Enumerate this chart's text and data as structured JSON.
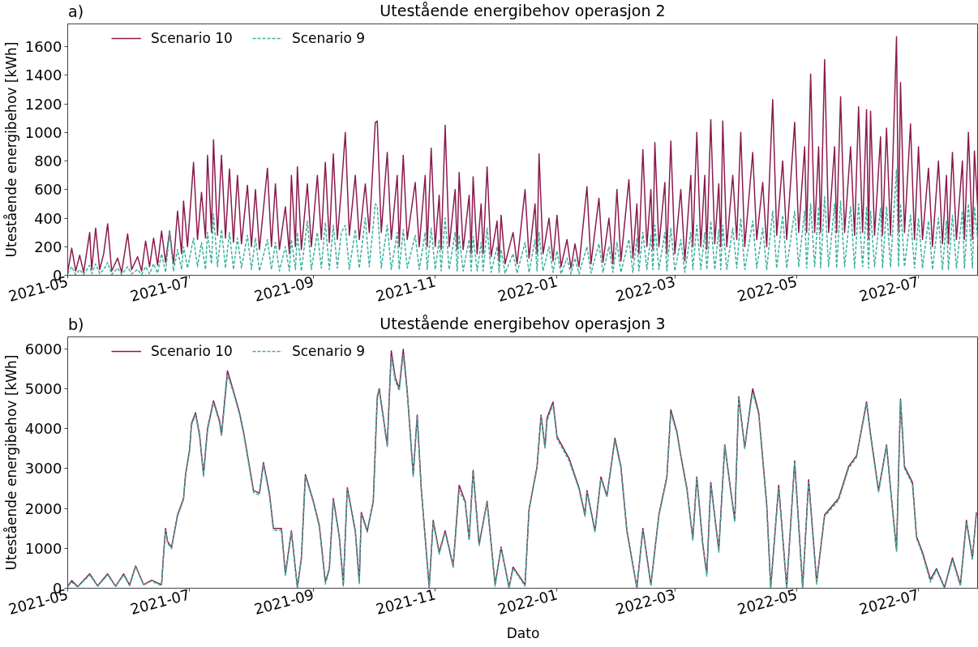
{
  "chart_data": [
    {
      "type": "line",
      "title": "Utestående energibehov operasjon 2",
      "ylabel": "Utestående energibehov [kWh]",
      "annotations": [
        "a)"
      ],
      "legend": "top left",
      "xlim": [
        "2021-05-01",
        "2022-07-31"
      ],
      "ylim": [
        0,
        1760
      ],
      "xticks": [
        "2021-05",
        "2021-07",
        "2021-09",
        "2021-11",
        "2022-01",
        "2022-03",
        "2022-05",
        "2022-07"
      ],
      "yticks": [
        0,
        200,
        400,
        600,
        800,
        1000,
        1200,
        1400,
        1600
      ],
      "x": [
        "2021-05-01",
        "2021-05-03",
        "2021-05-05",
        "2021-05-07",
        "2021-05-09",
        "2021-05-12",
        "2021-05-13",
        "2021-05-15",
        "2021-05-17",
        "2021-05-19",
        "2021-05-21",
        "2021-05-23",
        "2021-05-26",
        "2021-05-28",
        "2021-05-31",
        "2021-06-02",
        "2021-06-05",
        "2021-06-07",
        "2021-06-09",
        "2021-06-11",
        "2021-06-13",
        "2021-06-15",
        "2021-06-17",
        "2021-06-19",
        "2021-06-21",
        "2021-06-23",
        "2021-06-25",
        "2021-06-27",
        "2021-06-28",
        "2021-06-30",
        "2021-07-03",
        "2021-07-05",
        "2021-07-07",
        "2021-07-09",
        "2021-07-10",
        "2021-07-12",
        "2021-07-13",
        "2021-07-15",
        "2021-07-17",
        "2021-07-19",
        "2021-07-21",
        "2021-07-23",
        "2021-07-25",
        "2021-07-27",
        "2021-07-30",
        "2021-08-01",
        "2021-08-03",
        "2021-08-05",
        "2021-08-09",
        "2021-08-11",
        "2021-08-13",
        "2021-08-15",
        "2021-08-18",
        "2021-08-20",
        "2021-08-21",
        "2021-08-23",
        "2021-08-24",
        "2021-08-26",
        "2021-08-29",
        "2021-08-31",
        "2021-09-03",
        "2021-09-05",
        "2021-09-07",
        "2021-09-09",
        "2021-09-11",
        "2021-09-13",
        "2021-09-15",
        "2021-09-17",
        "2021-09-19",
        "2021-09-22",
        "2021-09-24",
        "2021-09-27",
        "2021-09-29",
        "2021-10-02",
        "2021-10-03",
        "2021-10-05",
        "2021-10-08",
        "2021-10-10",
        "2021-10-13",
        "2021-10-14",
        "2021-10-16",
        "2021-10-18",
        "2021-10-22",
        "2021-10-24",
        "2021-10-27",
        "2021-10-28",
        "2021-10-30",
        "2021-11-01",
        "2021-11-03",
        "2021-11-04",
        "2021-11-06",
        "2021-11-08",
        "2021-11-11",
        "2021-11-12",
        "2021-11-13",
        "2021-11-15",
        "2021-11-18",
        "2021-11-19",
        "2021-11-20",
        "2021-11-22",
        "2021-11-24",
        "2021-11-25",
        "2021-11-27",
        "2021-11-29",
        "2021-12-02",
        "2021-12-03",
        "2021-12-04",
        "2021-12-06",
        "2021-12-10",
        "2021-12-12",
        "2021-12-16",
        "2021-12-18",
        "2021-12-21",
        "2021-12-22",
        "2021-12-23",
        "2021-12-25",
        "2021-12-28",
        "2021-12-30",
        "2022-01-01",
        "2022-01-03",
        "2022-01-06",
        "2022-01-08",
        "2022-01-10",
        "2022-01-12",
        "2022-01-16",
        "2022-01-18",
        "2022-01-22",
        "2022-01-24",
        "2022-01-27",
        "2022-01-29",
        "2022-01-31",
        "2022-02-02",
        "2022-02-06",
        "2022-02-08",
        "2022-02-10",
        "2022-02-11",
        "2022-02-13",
        "2022-02-15",
        "2022-02-17",
        "2022-02-18",
        "2022-02-19",
        "2022-02-21",
        "2022-02-24",
        "2022-02-25",
        "2022-02-27",
        "2022-03-01",
        "2022-03-04",
        "2022-03-06",
        "2022-03-09",
        "2022-03-10",
        "2022-03-12",
        "2022-03-14",
        "2022-03-16",
        "2022-03-17",
        "2022-03-19",
        "2022-03-21",
        "2022-03-23",
        "2022-03-24",
        "2022-03-25",
        "2022-03-27",
        "2022-03-30",
        "2022-04-01",
        "2022-04-03",
        "2022-04-05",
        "2022-04-09",
        "2022-04-11",
        "2022-04-14",
        "2022-04-16",
        "2022-04-19",
        "2022-04-21",
        "2022-04-24",
        "2022-04-26",
        "2022-04-30",
        "2022-05-02",
        "2022-05-05",
        "2022-05-06",
        "2022-05-08",
        "2022-05-10",
        "2022-05-12",
        "2022-05-13",
        "2022-05-15",
        "2022-05-17",
        "2022-05-20",
        "2022-05-21",
        "2022-05-23",
        "2022-05-25",
        "2022-05-28",
        "2022-05-30",
        "2022-06-01",
        "2022-06-03",
        "2022-06-05",
        "2022-06-06",
        "2022-06-07",
        "2022-06-09",
        "2022-06-12",
        "2022-06-13",
        "2022-06-15",
        "2022-06-17",
        "2022-06-20",
        "2022-06-21",
        "2022-06-22",
        "2022-06-24",
        "2022-06-27",
        "2022-06-29",
        "2022-07-01",
        "2022-07-03",
        "2022-07-06",
        "2022-07-08",
        "2022-07-11",
        "2022-07-13",
        "2022-07-15",
        "2022-07-16",
        "2022-07-18",
        "2022-07-20",
        "2022-07-23",
        "2022-07-24",
        "2022-07-26",
        "2022-07-28",
        "2022-07-29",
        "2022-07-31"
      ],
      "series": [
        {
          "name": "Scenario 10",
          "color": "#8b1a4f",
          "line_style": "solid",
          "values": [
            20,
            190,
            30,
            140,
            20,
            300,
            40,
            330,
            40,
            150,
            360,
            30,
            120,
            20,
            290,
            40,
            130,
            30,
            240,
            60,
            260,
            70,
            310,
            90,
            310,
            80,
            450,
            150,
            520,
            200,
            790,
            250,
            580,
            260,
            840,
            300,
            950,
            280,
            840,
            260,
            745,
            230,
            700,
            220,
            630,
            200,
            600,
            180,
            750,
            200,
            640,
            180,
            480,
            150,
            700,
            200,
            760,
            180,
            640,
            200,
            700,
            250,
            790,
            230,
            850,
            250,
            600,
            1000,
            280,
            700,
            250,
            640,
            300,
            1070,
            1080,
            300,
            860,
            250,
            700,
            200,
            840,
            250,
            650,
            200,
            700,
            200,
            890,
            200,
            560,
            180,
            1050,
            200,
            600,
            180,
            720,
            180,
            560,
            150,
            690,
            150,
            500,
            150,
            760,
            130,
            380,
            100,
            420,
            80,
            300,
            80,
            600,
            120,
            500,
            150,
            850,
            150,
            400,
            100,
            420,
            60,
            250,
            50,
            220,
            60,
            620,
            80,
            540,
            90,
            400,
            80,
            600,
            100,
            670,
            120,
            500,
            150,
            880,
            200,
            600,
            180,
            930,
            200,
            650,
            150,
            940,
            150,
            600,
            100,
            700,
            200,
            1000,
            200,
            700,
            180,
            1090,
            220,
            640,
            200,
            1080,
            200,
            700,
            250,
            1000,
            200,
            860,
            250,
            650,
            200,
            1230,
            280,
            800,
            250,
            1070,
            300,
            900,
            300,
            1410,
            300,
            900,
            300,
            1510,
            300,
            900,
            300,
            1250,
            300,
            900,
            280,
            1180,
            300,
            1160,
            250,
            1150,
            280,
            970,
            280,
            1030,
            280,
            1670,
            300,
            1350,
            300,
            1060,
            250,
            900,
            250,
            750,
            200,
            800,
            220,
            700,
            220,
            860,
            250,
            800,
            250,
            1000,
            250,
            870,
            400
          ]
        },
        {
          "name": "Scenario 9",
          "color": "#3db29c",
          "line_style": "dashed",
          "values": [
            10,
            60,
            5,
            40,
            5,
            70,
            10,
            80,
            10,
            40,
            90,
            5,
            50,
            5,
            60,
            10,
            40,
            5,
            60,
            10,
            80,
            15,
            150,
            20,
            300,
            30,
            180,
            40,
            200,
            50,
            260,
            60,
            230,
            40,
            300,
            80,
            430,
            60,
            320,
            50,
            300,
            40,
            260,
            50,
            280,
            40,
            260,
            30,
            250,
            40,
            230,
            30,
            200,
            30,
            250,
            40,
            300,
            30,
            380,
            40,
            300,
            50,
            370,
            40,
            350,
            50,
            300,
            350,
            40,
            320,
            50,
            400,
            60,
            500,
            480,
            50,
            350,
            40,
            300,
            40,
            320,
            50,
            280,
            40,
            300,
            40,
            330,
            40,
            250,
            30,
            400,
            40,
            300,
            30,
            280,
            30,
            250,
            30,
            270,
            30,
            230,
            30,
            330,
            20,
            200,
            20,
            180,
            15,
            150,
            15,
            230,
            20,
            250,
            30,
            300,
            30,
            200,
            20,
            170,
            10,
            120,
            10,
            120,
            10,
            200,
            15,
            220,
            20,
            200,
            20,
            230,
            20,
            250,
            20,
            260,
            30,
            300,
            40,
            280,
            40,
            350,
            40,
            300,
            30,
            330,
            30,
            250,
            20,
            300,
            40,
            350,
            40,
            300,
            40,
            380,
            40,
            320,
            40,
            350,
            40,
            330,
            50,
            400,
            40,
            380,
            50,
            330,
            40,
            450,
            50,
            420,
            50,
            450,
            60,
            450,
            50,
            500,
            60,
            480,
            50,
            550,
            60,
            500,
            50,
            520,
            60,
            480,
            50,
            500,
            60,
            480,
            50,
            450,
            60,
            470,
            50,
            480,
            60,
            740,
            60,
            500,
            60,
            420,
            50,
            400,
            50,
            380,
            40,
            400,
            40,
            380,
            40,
            420,
            50,
            450,
            50,
            500,
            50,
            480,
            200
          ]
        }
      ]
    },
    {
      "type": "line",
      "title": "Utestående energibehov operasjon 3",
      "xlabel": "Dato",
      "ylabel": "Utestående energibehov [kWh]",
      "annotations": [
        "b)"
      ],
      "legend": "top left",
      "xlim": [
        "2021-05-01",
        "2022-07-31"
      ],
      "ylim": [
        0,
        6300
      ],
      "xticks": [
        "2021-05",
        "2021-07",
        "2021-09",
        "2021-11",
        "2022-01",
        "2022-03",
        "2022-05",
        "2022-07"
      ],
      "yticks": [
        0,
        1000,
        2000,
        3000,
        4000,
        5000,
        6000
      ],
      "x": [
        "2021-05-01",
        "2021-05-03",
        "2021-05-06",
        "2021-05-12",
        "2021-05-16",
        "2021-05-21",
        "2021-05-25",
        "2021-05-29",
        "2021-06-01",
        "2021-06-04",
        "2021-06-08",
        "2021-06-12",
        "2021-06-17",
        "2021-06-18",
        "2021-06-19",
        "2021-06-20",
        "2021-06-22",
        "2021-06-25",
        "2021-06-28",
        "2021-06-29",
        "2021-07-01",
        "2021-07-02",
        "2021-07-04",
        "2021-07-06",
        "2021-07-08",
        "2021-07-10",
        "2021-07-13",
        "2021-07-16",
        "2021-07-17",
        "2021-07-20",
        "2021-07-23",
        "2021-07-26",
        "2021-07-28",
        "2021-07-31",
        "2021-08-02",
        "2021-08-05",
        "2021-08-07",
        "2021-08-10",
        "2021-08-12",
        "2021-08-16",
        "2021-08-18",
        "2021-08-21",
        "2021-08-24",
        "2021-08-26",
        "2021-08-28",
        "2021-09-01",
        "2021-09-04",
        "2021-09-07",
        "2021-09-09",
        "2021-09-11",
        "2021-09-14",
        "2021-09-16",
        "2021-09-18",
        "2021-09-22",
        "2021-09-24",
        "2021-09-25",
        "2021-09-28",
        "2021-10-01",
        "2021-10-03",
        "2021-10-04",
        "2021-10-08",
        "2021-10-10",
        "2021-10-12",
        "2021-10-14",
        "2021-10-16",
        "2021-10-18",
        "2021-10-21",
        "2021-10-23",
        "2021-10-25",
        "2021-10-29",
        "2021-10-31",
        "2021-11-03",
        "2021-11-06",
        "2021-11-10",
        "2021-11-13",
        "2021-11-16",
        "2021-11-18",
        "2021-11-20",
        "2021-11-23",
        "2021-11-27",
        "2021-12-01",
        "2021-12-04",
        "2021-12-08",
        "2021-12-10",
        "2021-12-16",
        "2021-12-18",
        "2021-12-22",
        "2021-12-24",
        "2021-12-26",
        "2021-12-27",
        "2021-12-30",
        "2022-01-01",
        "2022-01-07",
        "2022-01-12",
        "2022-01-15",
        "2022-01-16",
        "2022-01-20",
        "2022-01-23",
        "2022-01-26",
        "2022-01-30",
        "2022-02-02",
        "2022-02-05",
        "2022-02-10",
        "2022-02-13",
        "2022-02-17",
        "2022-02-21",
        "2022-02-25",
        "2022-02-27",
        "2022-03-02",
        "2022-03-04",
        "2022-03-07",
        "2022-03-10",
        "2022-03-12",
        "2022-03-15",
        "2022-03-17",
        "2022-03-19",
        "2022-03-23",
        "2022-03-26",
        "2022-03-29",
        "2022-03-31",
        "2022-04-02",
        "2022-04-05",
        "2022-04-08",
        "2022-04-09",
        "2022-04-12",
        "2022-04-16",
        "2022-04-18",
        "2022-04-22",
        "2022-04-26",
        "2022-04-30",
        "2022-05-04",
        "2022-05-07",
        "2022-05-11",
        "2022-05-15",
        "2022-05-22",
        "2022-05-27",
        "2022-05-31",
        "2022-06-05",
        "2022-06-07",
        "2022-06-11",
        "2022-06-15",
        "2022-06-18",
        "2022-06-20",
        "2022-06-22",
        "2022-06-24",
        "2022-06-28",
        "2022-06-30",
        "2022-07-03",
        "2022-07-07",
        "2022-07-10",
        "2022-07-14",
        "2022-07-18",
        "2022-07-22",
        "2022-07-25",
        "2022-07-28",
        "2022-07-30"
      ],
      "series": [
        {
          "name": "Scenario 10",
          "color": "#8b1a4f",
          "line_style": "solid",
          "values": [
            50,
            190,
            40,
            360,
            60,
            360,
            50,
            360,
            80,
            560,
            90,
            200,
            90,
            860,
            1500,
            1170,
            1030,
            1840,
            2250,
            2850,
            3460,
            4130,
            4400,
            3860,
            2850,
            4000,
            4700,
            4200,
            3860,
            5450,
            4940,
            4400,
            3930,
            3050,
            2450,
            2380,
            3150,
            2380,
            1500,
            1500,
            360,
            1440,
            20,
            760,
            2850,
            2180,
            1570,
            160,
            490,
            2250,
            1300,
            90,
            2520,
            1440,
            160,
            1900,
            1440,
            2180,
            4800,
            5000,
            3590,
            5950,
            5280,
            5010,
            5990,
            4940,
            2850,
            4340,
            2520,
            20,
            1700,
            900,
            1440,
            560,
            2580,
            2180,
            1230,
            2950,
            1100,
            2180,
            90,
            1030,
            20,
            530,
            90,
            1980,
            3050,
            4340,
            3530,
            4270,
            4670,
            3800,
            3260,
            2520,
            1840,
            2450,
            1440,
            2790,
            2310,
            3760,
            3050,
            1440,
            20,
            1500,
            90,
            1840,
            2790,
            4470,
            3930,
            3320,
            2520,
            1230,
            2790,
            1100,
            360,
            2650,
            960,
            3590,
            2450,
            1700,
            4800,
            3530,
            4670,
            5000,
            4400,
            2110,
            20,
            2580,
            20,
            3190,
            20,
            2720,
            160,
            1840,
            2250,
            3050,
            3320,
            4670,
            3860,
            2450,
            3590,
            1980,
            960,
            4740,
            3050,
            2650,
            1300,
            900,
            220,
            490,
            20,
            760,
            90,
            1700,
            760,
            1900
          ]
        },
        {
          "name": "Scenario 9",
          "color": "#3db29c",
          "line_style": "dashed",
          "values": [
            40,
            150,
            30,
            330,
            50,
            330,
            40,
            330,
            60,
            540,
            80,
            180,
            60,
            830,
            1450,
            1130,
            990,
            1800,
            2220,
            2820,
            3420,
            4080,
            4350,
            3800,
            2800,
            3950,
            4650,
            4150,
            3800,
            5350,
            4900,
            4350,
            3880,
            3000,
            2400,
            2330,
            3100,
            2330,
            1450,
            1450,
            300,
            1400,
            0,
            720,
            2800,
            2150,
            1520,
            100,
            450,
            2200,
            1250,
            50,
            2480,
            1400,
            100,
            1850,
            1400,
            2150,
            4750,
            4950,
            3550,
            5800,
            5200,
            4950,
            5850,
            4900,
            2800,
            4300,
            2480,
            0,
            1650,
            850,
            1400,
            520,
            2450,
            2150,
            1200,
            2900,
            1050,
            2150,
            50,
            1000,
            0,
            500,
            50,
            1950,
            3000,
            4300,
            3500,
            4200,
            4600,
            3750,
            3200,
            2480,
            1800,
            2400,
            1400,
            2750,
            2280,
            3700,
            3000,
            1400,
            0,
            1450,
            50,
            1800,
            2750,
            4400,
            3880,
            3280,
            2480,
            1200,
            2750,
            1050,
            300,
            2600,
            900,
            3550,
            2400,
            1650,
            4750,
            3500,
            4600,
            4900,
            4350,
            2050,
            0,
            2500,
            0,
            3150,
            0,
            2650,
            100,
            1800,
            2200,
            3000,
            3280,
            4620,
            3800,
            2400,
            3550,
            1950,
            920,
            4700,
            3000,
            2600,
            1250,
            850,
            150,
            450,
            0,
            700,
            50,
            1650,
            700,
            1850
          ]
        }
      ]
    }
  ]
}
